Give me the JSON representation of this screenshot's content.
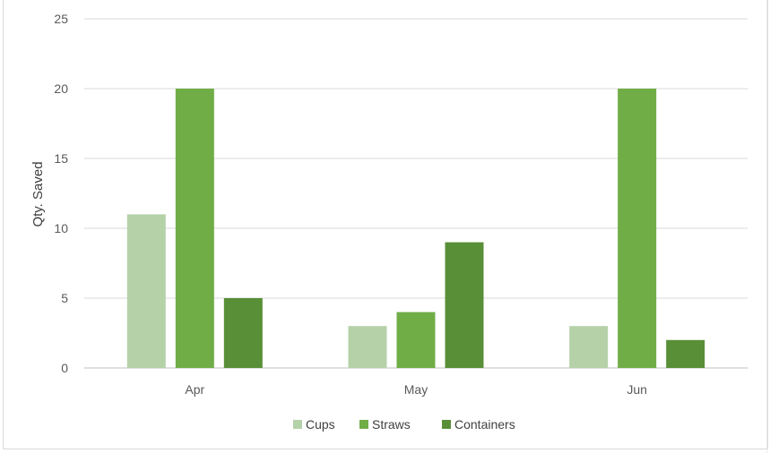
{
  "chart_data": {
    "type": "bar",
    "categories": [
      "Apr",
      "May",
      "Jun"
    ],
    "series": [
      {
        "name": "Cups",
        "values": [
          11,
          3,
          3
        ],
        "color": "#b5d1a8"
      },
      {
        "name": "Straws",
        "values": [
          20,
          4,
          20
        ],
        "color": "#70ad47"
      },
      {
        "name": "Containers",
        "values": [
          5,
          9,
          2
        ],
        "color": "#598f37"
      }
    ],
    "ylabel": "Qty. Saved",
    "ylim": [
      0,
      25
    ],
    "yticks": [
      0,
      5,
      10,
      15,
      20,
      25
    ],
    "grid": true,
    "legend": "bottom-center"
  }
}
